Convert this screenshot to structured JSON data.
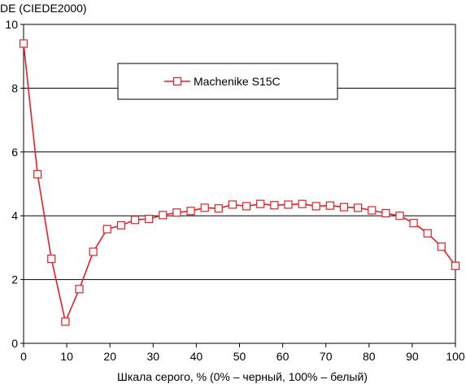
{
  "chart_data": {
    "type": "line",
    "ylabel": "DE (CIEDE2000)",
    "xlabel": "Шкала серого, % (0% – черный, 100% – белый)",
    "xlim": [
      0,
      100
    ],
    "ylim": [
      0,
      10
    ],
    "x_ticks": [
      0,
      10,
      20,
      30,
      40,
      50,
      60,
      70,
      80,
      90,
      100
    ],
    "y_ticks": [
      0,
      2,
      4,
      6,
      8,
      10
    ],
    "x_tick_labels": [
      "0",
      "10",
      "20",
      "30",
      "40",
      "50",
      "60",
      "70",
      "80",
      "90",
      "100"
    ],
    "y_tick_labels": [
      "0",
      "2",
      "4",
      "6",
      "8",
      "10"
    ],
    "grid": "horizontal",
    "legend_position": "top-center",
    "colors": {
      "series": "#e31e24",
      "grid": "#000000",
      "axis": "#000000"
    },
    "series": [
      {
        "name": "Machenike S15C",
        "marker": "square",
        "x": [
          0,
          3.23,
          6.45,
          9.68,
          12.9,
          16.13,
          19.35,
          22.58,
          25.81,
          29.03,
          32.26,
          35.48,
          38.71,
          41.94,
          45.16,
          48.39,
          51.61,
          54.84,
          58.06,
          61.29,
          64.52,
          67.74,
          70.97,
          74.19,
          77.42,
          80.65,
          83.87,
          87.1,
          90.32,
          93.55,
          96.77,
          100
        ],
        "y": [
          9.4,
          5.3,
          2.65,
          0.68,
          1.7,
          2.87,
          3.58,
          3.7,
          3.87,
          3.9,
          4.02,
          4.1,
          4.15,
          4.25,
          4.23,
          4.35,
          4.3,
          4.37,
          4.33,
          4.35,
          4.37,
          4.3,
          4.32,
          4.27,
          4.25,
          4.17,
          4.08,
          4.0,
          3.77,
          3.45,
          3.03,
          2.43
        ]
      }
    ]
  }
}
